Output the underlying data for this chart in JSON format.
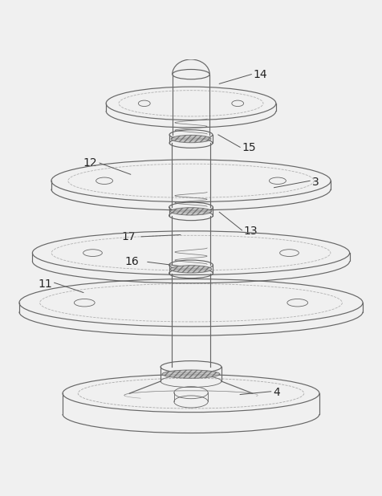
{
  "bg_color": "#f0f0f0",
  "line_color": "#666666",
  "fig_width": 4.76,
  "fig_height": 6.18,
  "label_fontsize": 10
}
